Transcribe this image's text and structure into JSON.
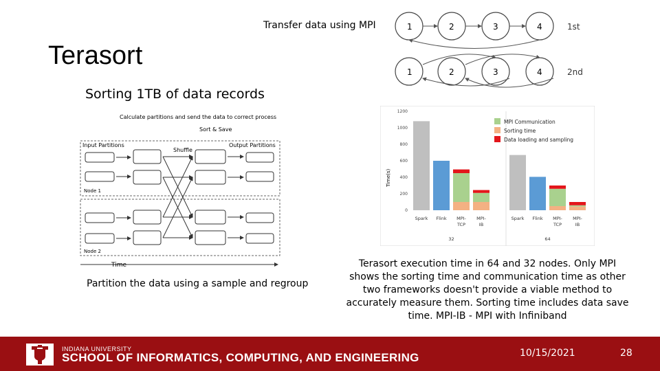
{
  "slide": {
    "title": "Terasort",
    "subtitle": "Sorting 1TB of data records",
    "mpi_transfer_label": "Transfer data using MPI",
    "partition_caption": "Partition the data using a sample and regroup",
    "chart_caption": "Terasort execution time in 64 and 32 nodes. Only MPI shows the sorting time and communication time as other two frameworks doesn't provide a viable method to accurately measure them. Sorting time includes data save time. MPI-IB - MPI with Infiniband"
  },
  "ring_diagram": {
    "rows": [
      {
        "label": "1st",
        "nodes": [
          "1",
          "2",
          "3",
          "4"
        ]
      },
      {
        "label": "2nd",
        "nodes": [
          "1",
          "2",
          "3",
          "4"
        ]
      }
    ]
  },
  "partition_diagram": {
    "top_note": "Calculate partitions and send the data to correct process",
    "sort_save": "Sort & Save",
    "input_partitions": "Input Partitions",
    "shuffle": "Shuffle",
    "output_partitions": "Output Partitions",
    "node1": "Node 1",
    "node2": "Node 2",
    "time": "Time"
  },
  "chart_data": {
    "type": "bar",
    "ylabel": "Time(s)",
    "ylim": [
      0,
      1200
    ],
    "yticks": [
      "0",
      "200",
      "400",
      "600",
      "800",
      "1000",
      "1200"
    ],
    "groups": [
      {
        "name": "32",
        "categories": [
          "Spark",
          "Flink",
          "MPI-TCP",
          "MPI-IB"
        ]
      },
      {
        "name": "64",
        "categories": [
          "Spark",
          "Flink",
          "MPI-TCP",
          "MPI-IB"
        ]
      }
    ],
    "legend": [
      "MPI Communication",
      "Sorting time",
      "Data loading and sampling"
    ],
    "colors": {
      "spark": "#bfbfbf",
      "flink": "#5b9bd5",
      "communication": "#a9d18e",
      "sorting": "#f4b183",
      "loading": "#e3161b"
    },
    "bars": [
      {
        "group": "32",
        "category": "Spark",
        "total": 1080
      },
      {
        "group": "32",
        "category": "Flink",
        "total": 600
      },
      {
        "group": "32",
        "category": "MPI-TCP",
        "sorting": 100,
        "communication": 350,
        "loading": 45
      },
      {
        "group": "32",
        "category": "MPI-IB",
        "sorting": 100,
        "communication": 110,
        "loading": 35
      },
      {
        "group": "64",
        "category": "Spark",
        "total": 670
      },
      {
        "group": "64",
        "category": "Flink",
        "total": 405
      },
      {
        "group": "64",
        "category": "MPI-TCP",
        "sorting": 50,
        "communication": 210,
        "loading": 40
      },
      {
        "group": "64",
        "category": "MPI-IB",
        "sorting": 45,
        "communication": 15,
        "loading": 40
      }
    ]
  },
  "footer": {
    "university": "INDIANA UNIVERSITY",
    "school": "SCHOOL OF INFORMATICS, COMPUTING, AND ENGINEERING",
    "date": "10/15/2021",
    "page": "28"
  }
}
